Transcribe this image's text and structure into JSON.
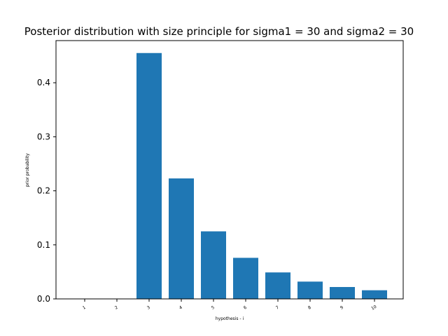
{
  "chart_data": {
    "type": "bar",
    "title": "Posterior distribution with size principle for sigma1 = 30 and sigma2 = 30",
    "xlabel": "hypothesis - i",
    "ylabel": "prior probability",
    "categories": [
      "1",
      "2",
      "3",
      "4",
      "5",
      "6",
      "7",
      "8",
      "9",
      "10"
    ],
    "values": [
      0.0,
      0.0,
      0.455,
      0.223,
      0.125,
      0.076,
      0.049,
      0.032,
      0.022,
      0.016
    ],
    "ylim": [
      0,
      0.478
    ],
    "yticks": [
      "0.0",
      "0.1",
      "0.2",
      "0.3",
      "0.4"
    ],
    "color": "#1f77b4",
    "grid": false
  }
}
